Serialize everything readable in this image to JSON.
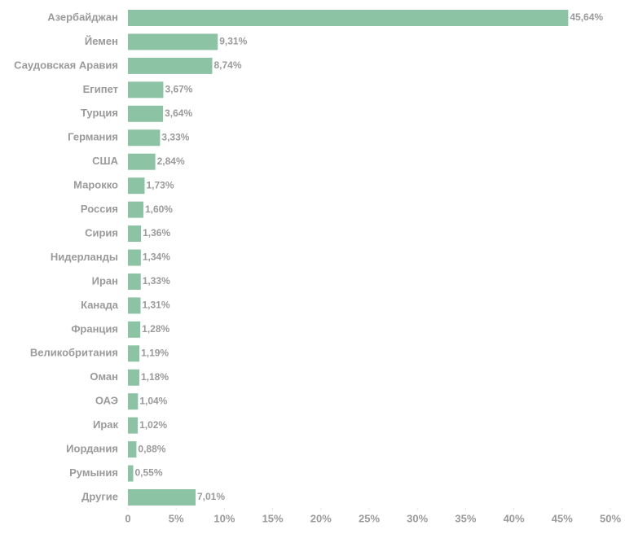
{
  "chart_data": {
    "type": "bar",
    "orientation": "horizontal",
    "categories": [
      "Азербайджан",
      "Йемен",
      "Саудовская Аравия",
      "Египет",
      "Турция",
      "Германия",
      "США",
      "Марокко",
      "Россия",
      "Сирия",
      "Нидерланды",
      "Иран",
      "Канада",
      "Франция",
      "Великобритания",
      "Оман",
      "ОАЭ",
      "Ирак",
      "Иордания",
      "Румыния",
      "Другие"
    ],
    "values": [
      45.64,
      9.31,
      8.74,
      3.67,
      3.64,
      3.33,
      2.84,
      1.73,
      1.6,
      1.36,
      1.34,
      1.33,
      1.31,
      1.28,
      1.19,
      1.18,
      1.04,
      1.02,
      0.88,
      0.55,
      7.01
    ],
    "value_labels": [
      "45,64%",
      "9,31%",
      "8,74%",
      "3,67%",
      "3,64%",
      "3,33%",
      "2,84%",
      "1,73%",
      "1,60%",
      "1,36%",
      "1,34%",
      "1,33%",
      "1,31%",
      "1,28%",
      "1,19%",
      "1,18%",
      "1,04%",
      "1,02%",
      "0,88%",
      "0,55%",
      "7,01%"
    ],
    "color": "#8cc3a5",
    "xlim": [
      0,
      50
    ],
    "xticks": [
      0,
      {
        "value": 5,
        "label": "5%"
      },
      {
        "value": 10,
        "label": "10%"
      },
      {
        "value": 15,
        "label": "15%"
      },
      {
        "value": 20,
        "label": "20%"
      },
      {
        "value": 25,
        "label": "25%"
      },
      {
        "value": 30,
        "label": "30%"
      },
      {
        "value": 35,
        "label": "35%"
      },
      {
        "value": 40,
        "label": "40%"
      },
      {
        "value": 45,
        "label": "45%"
      },
      {
        "value": 50,
        "label": "50%"
      }
    ],
    "grid": false
  }
}
